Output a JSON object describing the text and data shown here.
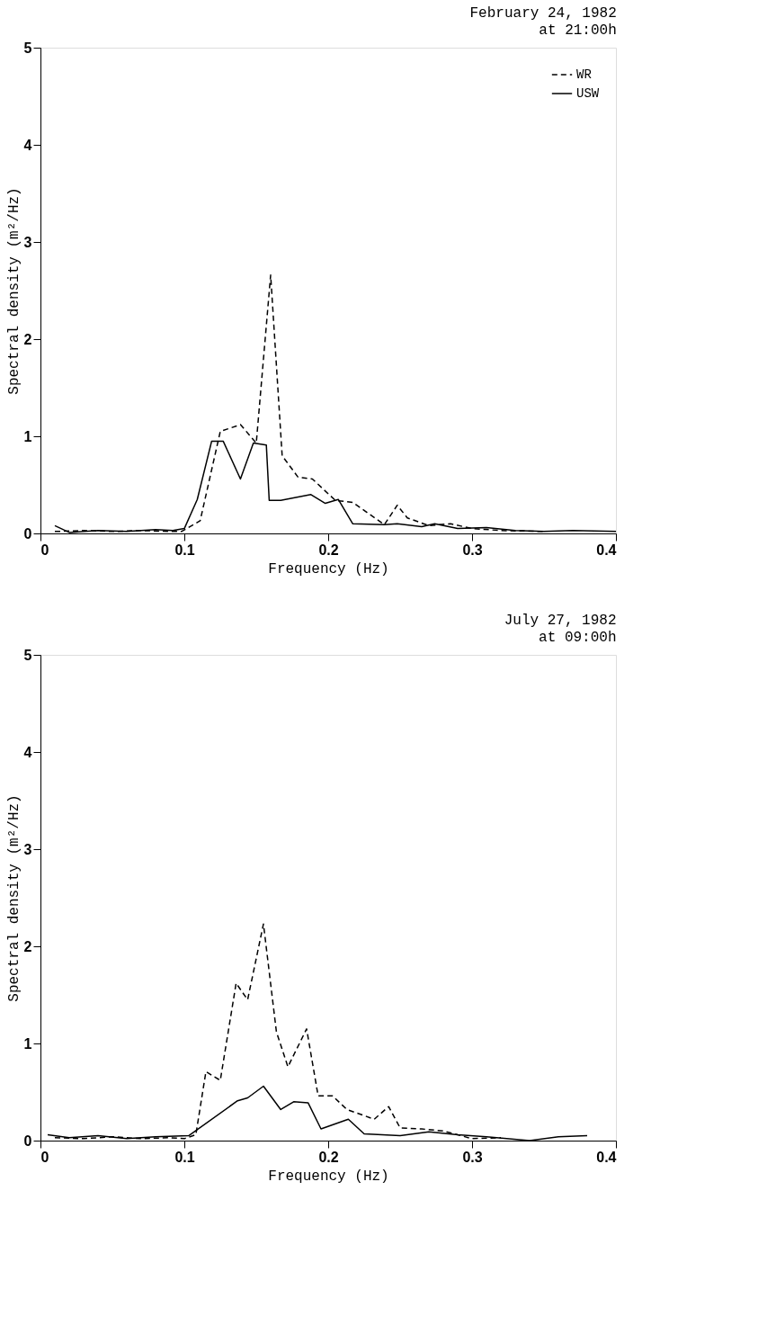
{
  "chart_data": [
    {
      "type": "line",
      "title": "February 24, 1982",
      "subtitle": "at 21:00h",
      "xlabel": "Frequency (Hz)",
      "ylabel": "Spectral density (m²/Hz)",
      "xlim": [
        0,
        0.4
      ],
      "xticks": [
        0,
        0.1,
        0.2,
        0.3,
        0.4
      ],
      "ylim": [
        0,
        5
      ],
      "yticks": [
        0,
        1,
        2,
        3,
        4,
        5
      ],
      "grid": false,
      "legend": "top right",
      "marker": "none",
      "series": [
        {
          "name": "WR",
          "color": "#000000",
          "line_style": "dashed",
          "x": [
            0.01,
            0.03,
            0.05,
            0.07,
            0.09,
            0.098,
            0.111,
            0.125,
            0.139,
            0.15,
            0.16,
            0.168,
            0.179,
            0.189,
            0.205,
            0.217,
            0.239,
            0.248,
            0.255,
            0.27,
            0.285,
            0.3,
            0.32,
            0.35
          ],
          "values": [
            0.02,
            0.03,
            0.02,
            0.03,
            0.02,
            0.02,
            0.13,
            1.05,
            1.12,
            0.93,
            2.66,
            0.8,
            0.58,
            0.56,
            0.34,
            0.32,
            0.09,
            0.29,
            0.16,
            0.08,
            0.1,
            0.05,
            0.03,
            0.02
          ]
        },
        {
          "name": "USW",
          "color": "#000000",
          "line_style": "solid",
          "x": [
            0.01,
            0.02,
            0.04,
            0.06,
            0.08,
            0.092,
            0.1,
            0.109,
            0.119,
            0.127,
            0.139,
            0.148,
            0.157,
            0.159,
            0.167,
            0.188,
            0.198,
            0.207,
            0.217,
            0.239,
            0.248,
            0.265,
            0.274,
            0.29,
            0.31,
            0.33,
            0.35,
            0.37,
            0.4
          ],
          "values": [
            0.08,
            0.01,
            0.03,
            0.02,
            0.04,
            0.03,
            0.05,
            0.35,
            0.95,
            0.95,
            0.56,
            0.93,
            0.91,
            0.34,
            0.34,
            0.4,
            0.31,
            0.35,
            0.1,
            0.09,
            0.1,
            0.07,
            0.1,
            0.05,
            0.06,
            0.03,
            0.02,
            0.03,
            0.02
          ]
        }
      ]
    },
    {
      "type": "line",
      "title": "July 27, 1982",
      "subtitle": "at 09:00h",
      "xlabel": "Frequency (Hz)",
      "ylabel": "Spectral density (m²/Hz)",
      "xlim": [
        0,
        0.4
      ],
      "xticks": [
        0,
        0.1,
        0.2,
        0.3,
        0.4
      ],
      "ylim": [
        0,
        5
      ],
      "yticks": [
        0,
        1,
        2,
        3,
        4,
        5
      ],
      "grid": false,
      "legend": "top right",
      "marker": "none",
      "series": [
        {
          "name": "WR",
          "color": "#000000",
          "line_style": "dashed",
          "x": [
            0.01,
            0.03,
            0.05,
            0.07,
            0.09,
            0.1,
            0.108,
            0.115,
            0.125,
            0.136,
            0.144,
            0.155,
            0.164,
            0.172,
            0.185,
            0.193,
            0.203,
            0.213,
            0.232,
            0.242,
            0.25,
            0.265,
            0.28,
            0.3,
            0.32
          ],
          "values": [
            0.03,
            0.02,
            0.04,
            0.02,
            0.03,
            0.02,
            0.06,
            0.71,
            0.62,
            1.62,
            1.45,
            2.23,
            1.12,
            0.76,
            1.15,
            0.46,
            0.46,
            0.32,
            0.22,
            0.35,
            0.13,
            0.12,
            0.1,
            0.02,
            0.03
          ]
        },
        {
          "name": "USW",
          "color": "#000000",
          "line_style": "solid",
          "x": [
            0.005,
            0.02,
            0.04,
            0.06,
            0.08,
            0.103,
            0.137,
            0.144,
            0.155,
            0.167,
            0.176,
            0.186,
            0.195,
            0.214,
            0.225,
            0.25,
            0.27,
            0.29,
            0.31,
            0.34,
            0.36,
            0.38
          ],
          "values": [
            0.06,
            0.03,
            0.05,
            0.02,
            0.04,
            0.05,
            0.41,
            0.44,
            0.56,
            0.32,
            0.4,
            0.39,
            0.12,
            0.22,
            0.07,
            0.05,
            0.09,
            0.06,
            0.04,
            0.0,
            0.04,
            0.05
          ]
        }
      ]
    }
  ]
}
